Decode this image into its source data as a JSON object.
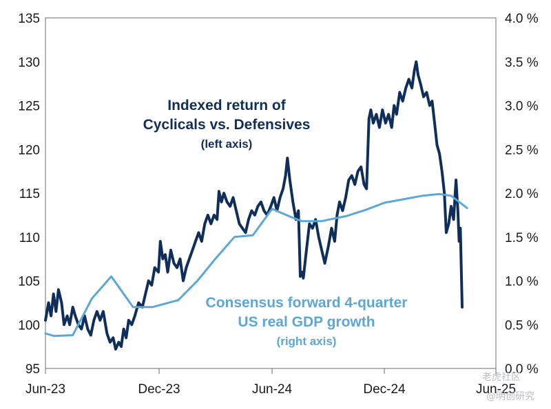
{
  "chart_data": {
    "type": "line",
    "x_tick_labels": [
      "Jun-23",
      "Dec-23",
      "Jun-24",
      "Dec-24",
      "Jun-25"
    ],
    "y_left": {
      "ticks": [
        "95",
        "100",
        "105",
        "110",
        "115",
        "120",
        "125",
        "130",
        "135"
      ],
      "ylim": [
        95,
        135
      ]
    },
    "y_right": {
      "ticks": [
        "0.0 %",
        "0.5 %",
        "1.0 %",
        "1.5 %",
        "2.0 %",
        "2.5 %",
        "3.0 %",
        "3.5 %",
        "4.0 %"
      ],
      "ylim": [
        0.0,
        4.0
      ]
    },
    "grid": false,
    "annotations": {
      "left_series": [
        "Indexed return of",
        "Cyclicals vs. Defensives",
        "(left axis)"
      ],
      "right_series": [
        "Consensus forward 4-quarter",
        "US real GDP growth",
        "(right axis)"
      ]
    },
    "series": [
      {
        "axis": "left",
        "color": "#0f2f5a",
        "points": [
          [
            "2023-06-01",
            100.5
          ],
          [
            "2023-06-06",
            102.5
          ],
          [
            "2023-06-10",
            101.0
          ],
          [
            "2023-06-14",
            103.5
          ],
          [
            "2023-06-18",
            101.5
          ],
          [
            "2023-06-22",
            104.0
          ],
          [
            "2023-06-27",
            102.5
          ],
          [
            "2023-07-01",
            100.0
          ],
          [
            "2023-07-06",
            101.0
          ],
          [
            "2023-07-10",
            100.0
          ],
          [
            "2023-07-15",
            102.0
          ],
          [
            "2023-07-19",
            101.0
          ],
          [
            "2023-07-24",
            100.0
          ],
          [
            "2023-07-29",
            99.5
          ],
          [
            "2023-08-03",
            101.0
          ],
          [
            "2023-08-08",
            99.5
          ],
          [
            "2023-08-13",
            98.8
          ],
          [
            "2023-08-18",
            100.5
          ],
          [
            "2023-08-23",
            101.5
          ],
          [
            "2023-08-28",
            100.5
          ],
          [
            "2023-09-02",
            101.5
          ],
          [
            "2023-09-08",
            99.0
          ],
          [
            "2023-09-13",
            98.0
          ],
          [
            "2023-09-18",
            98.5
          ],
          [
            "2023-09-22",
            97.2
          ],
          [
            "2023-09-27",
            98.0
          ],
          [
            "2023-10-01",
            97.5
          ],
          [
            "2023-10-05",
            99.5
          ],
          [
            "2023-10-09",
            98.5
          ],
          [
            "2023-10-13",
            100.5
          ],
          [
            "2023-10-18",
            100.0
          ],
          [
            "2023-10-23",
            101.0
          ],
          [
            "2023-10-29",
            102.5
          ],
          [
            "2023-11-04",
            102.0
          ],
          [
            "2023-11-09",
            103.5
          ],
          [
            "2023-11-14",
            105.0
          ],
          [
            "2023-11-19",
            104.5
          ],
          [
            "2023-11-24",
            106.5
          ],
          [
            "2023-11-30",
            106.0
          ],
          [
            "2023-12-03",
            109.5
          ],
          [
            "2023-12-07",
            107.5
          ],
          [
            "2023-12-11",
            108.0
          ],
          [
            "2023-12-15",
            106.0
          ],
          [
            "2023-12-20",
            108.5
          ],
          [
            "2023-12-25",
            107.0
          ],
          [
            "2023-12-30",
            106.5
          ],
          [
            "2024-01-04",
            107.5
          ],
          [
            "2024-01-09",
            105.0
          ],
          [
            "2024-01-14",
            106.5
          ],
          [
            "2024-01-19",
            107.5
          ],
          [
            "2024-01-24",
            108.5
          ],
          [
            "2024-01-29",
            109.5
          ],
          [
            "2024-02-03",
            110.5
          ],
          [
            "2024-02-08",
            109.5
          ],
          [
            "2024-02-13",
            111.5
          ],
          [
            "2024-02-18",
            112.5
          ],
          [
            "2024-02-23",
            111.5
          ],
          [
            "2024-02-28",
            112.5
          ],
          [
            "2024-03-04",
            112.0
          ],
          [
            "2024-03-07",
            115.2
          ],
          [
            "2024-03-11",
            114.0
          ],
          [
            "2024-03-15",
            115.0
          ],
          [
            "2024-03-20",
            114.0
          ],
          [
            "2024-03-25",
            113.5
          ],
          [
            "2024-03-30",
            114.5
          ],
          [
            "2024-04-04",
            113.0
          ],
          [
            "2024-04-09",
            111.5
          ],
          [
            "2024-04-14",
            111.0
          ],
          [
            "2024-04-19",
            110.5
          ],
          [
            "2024-04-24",
            112.0
          ],
          [
            "2024-04-29",
            113.0
          ],
          [
            "2024-05-04",
            112.5
          ],
          [
            "2024-05-09",
            113.5
          ],
          [
            "2024-05-14",
            114.0
          ],
          [
            "2024-05-19",
            113.0
          ],
          [
            "2024-05-24",
            112.5
          ],
          [
            "2024-05-30",
            113.5
          ],
          [
            "2024-06-04",
            114.5
          ],
          [
            "2024-06-09",
            113.0
          ],
          [
            "2024-06-14",
            114.5
          ],
          [
            "2024-06-19",
            115.5
          ],
          [
            "2024-06-23",
            117.0
          ],
          [
            "2024-06-26",
            119.0
          ],
          [
            "2024-06-30",
            116.5
          ],
          [
            "2024-07-05",
            114.0
          ],
          [
            "2024-07-10",
            112.0
          ],
          [
            "2024-07-14",
            113.0
          ],
          [
            "2024-07-17",
            105.5
          ],
          [
            "2024-07-20",
            106.0
          ],
          [
            "2024-07-22",
            105.3
          ],
          [
            "2024-07-27",
            108.5
          ],
          [
            "2024-08-01",
            111.5
          ],
          [
            "2024-08-06",
            111.0
          ],
          [
            "2024-08-11",
            112.0
          ],
          [
            "2024-08-16",
            110.0
          ],
          [
            "2024-08-21",
            108.5
          ],
          [
            "2024-08-26",
            107.0
          ],
          [
            "2024-09-01",
            109.0
          ],
          [
            "2024-09-06",
            111.0
          ],
          [
            "2024-09-11",
            109.5
          ],
          [
            "2024-09-15",
            112.5
          ],
          [
            "2024-09-19",
            114.0
          ],
          [
            "2024-09-24",
            113.0
          ],
          [
            "2024-09-29",
            114.5
          ],
          [
            "2024-10-04",
            116.5
          ],
          [
            "2024-10-09",
            117.0
          ],
          [
            "2024-10-14",
            116.0
          ],
          [
            "2024-10-19",
            117.5
          ],
          [
            "2024-10-24",
            118.0
          ],
          [
            "2024-10-29",
            116.0
          ],
          [
            "2024-11-02",
            115.5
          ],
          [
            "2024-11-06",
            123.5
          ],
          [
            "2024-11-09",
            124.5
          ],
          [
            "2024-11-13",
            123.0
          ],
          [
            "2024-11-18",
            124.0
          ],
          [
            "2024-11-23",
            122.5
          ],
          [
            "2024-11-28",
            124.5
          ],
          [
            "2024-12-03",
            123.0
          ],
          [
            "2024-12-08",
            124.0
          ],
          [
            "2024-12-13",
            122.5
          ],
          [
            "2024-12-17",
            125.0
          ],
          [
            "2024-12-21",
            124.0
          ],
          [
            "2024-12-26",
            126.5
          ],
          [
            "2024-12-31",
            125.5
          ],
          [
            "2025-01-05",
            127.0
          ],
          [
            "2025-01-10",
            128.0
          ],
          [
            "2025-01-15",
            127.0
          ],
          [
            "2025-01-19",
            129.0
          ],
          [
            "2025-01-22",
            130.0
          ],
          [
            "2025-01-25",
            128.5
          ],
          [
            "2025-01-29",
            127.5
          ],
          [
            "2025-02-03",
            126.0
          ],
          [
            "2025-02-08",
            126.5
          ],
          [
            "2025-02-13",
            125.0
          ],
          [
            "2025-02-17",
            125.5
          ],
          [
            "2025-02-21",
            123.0
          ],
          [
            "2025-02-25",
            120.5
          ],
          [
            "2025-03-01",
            119.5
          ],
          [
            "2025-03-05",
            117.5
          ],
          [
            "2025-03-09",
            115.0
          ],
          [
            "2025-03-12",
            110.5
          ],
          [
            "2025-03-16",
            111.5
          ],
          [
            "2025-03-20",
            113.5
          ],
          [
            "2025-03-24",
            112.0
          ],
          [
            "2025-03-28",
            116.5
          ],
          [
            "2025-03-31",
            113.0
          ],
          [
            "2025-04-02",
            109.5
          ],
          [
            "2025-04-04",
            111.0
          ],
          [
            "2025-04-07",
            102.0
          ]
        ]
      },
      {
        "axis": "right",
        "color": "#5aa7d8",
        "points": [
          [
            "2023-06-01",
            0.4
          ],
          [
            "2023-06-15",
            0.37
          ],
          [
            "2023-07-15",
            0.38
          ],
          [
            "2023-08-15",
            0.8
          ],
          [
            "2023-09-15",
            1.05
          ],
          [
            "2023-10-20",
            0.7
          ],
          [
            "2023-11-20",
            0.7
          ],
          [
            "2024-01-01",
            0.78
          ],
          [
            "2024-02-01",
            1.0
          ],
          [
            "2024-03-01",
            1.25
          ],
          [
            "2024-04-01",
            1.5
          ],
          [
            "2024-05-01",
            1.52
          ],
          [
            "2024-06-01",
            1.82
          ],
          [
            "2024-07-01",
            1.73
          ],
          [
            "2024-07-20",
            1.68
          ],
          [
            "2024-08-20",
            1.68
          ],
          [
            "2024-10-01",
            1.74
          ],
          [
            "2024-11-01",
            1.81
          ],
          [
            "2024-12-01",
            1.89
          ],
          [
            "2025-01-01",
            1.93
          ],
          [
            "2025-02-01",
            1.97
          ],
          [
            "2025-03-01",
            1.99
          ],
          [
            "2025-03-20",
            1.97
          ],
          [
            "2025-04-15",
            1.83
          ]
        ]
      }
    ]
  },
  "watermark": {
    "line1": "老虎社区",
    "line2": "@明创研究"
  }
}
